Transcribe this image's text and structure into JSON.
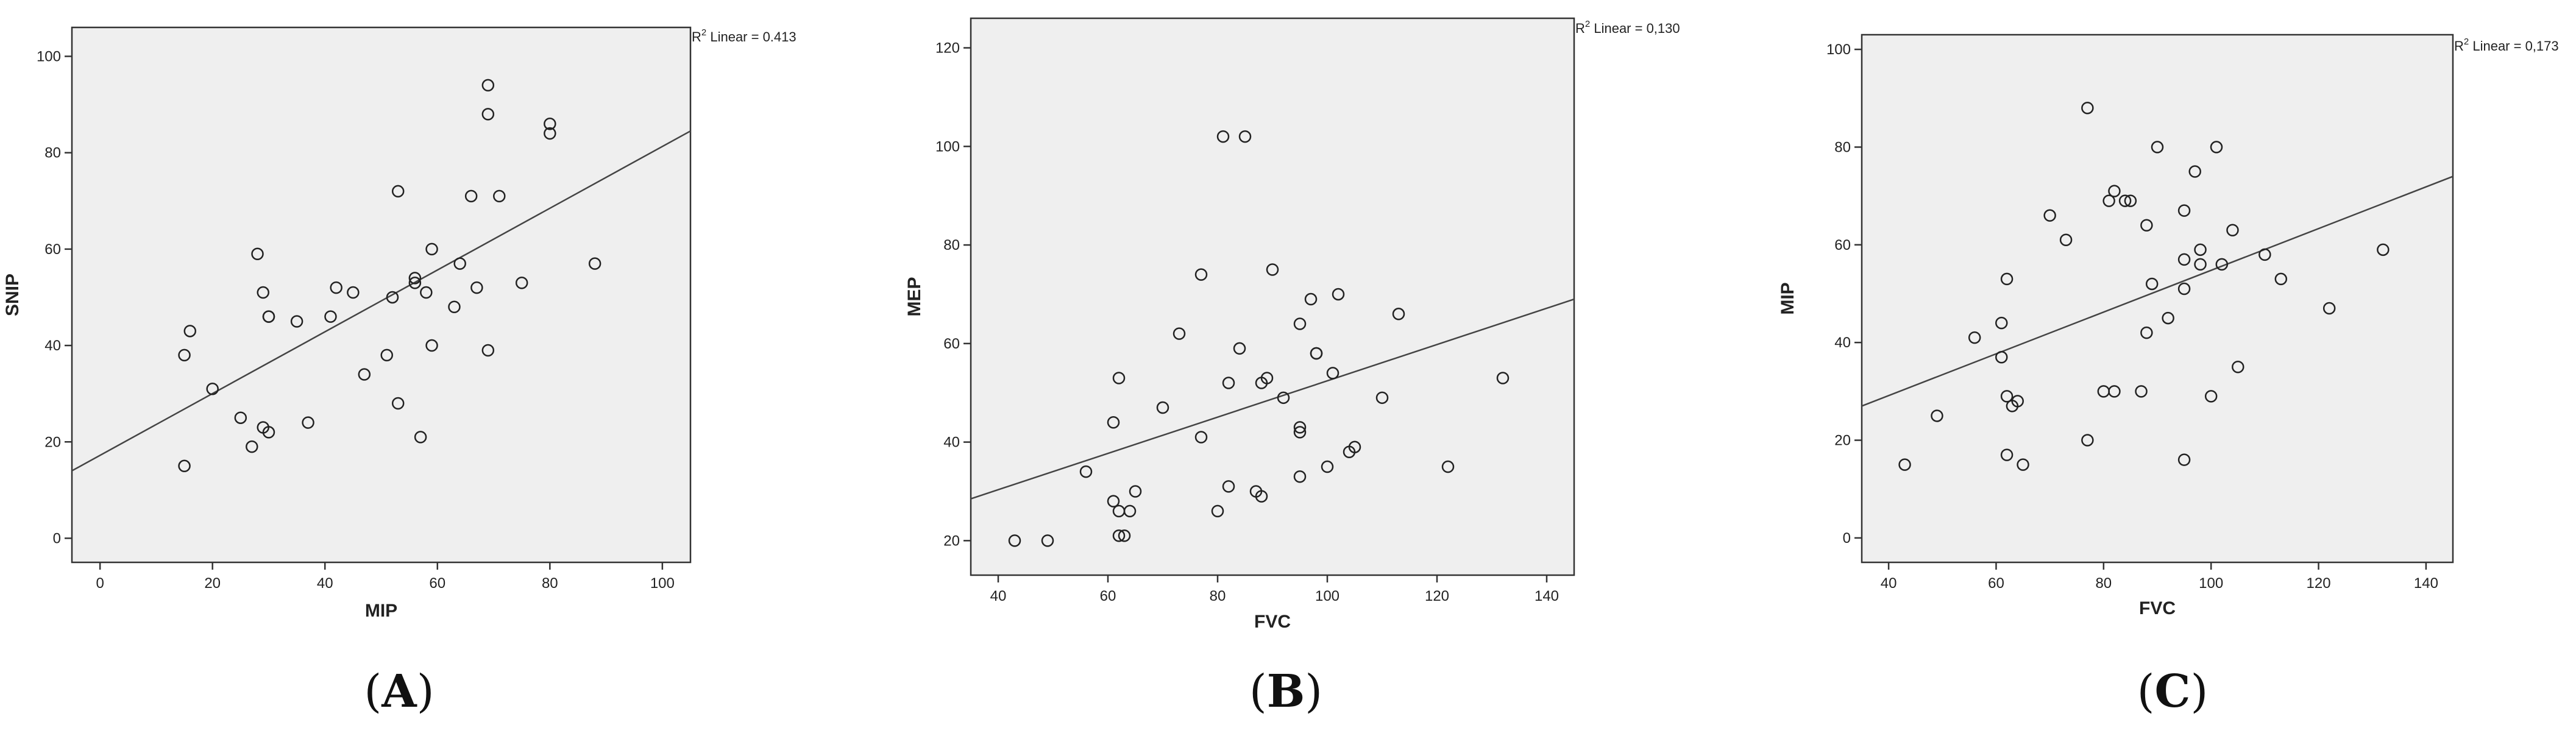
{
  "chart_data": [
    {
      "type": "scatter",
      "panel_label": "A",
      "xlabel": "MIP",
      "ylabel": "SNIP",
      "xlim": [
        -5,
        105
      ],
      "ylim": [
        -5,
        106
      ],
      "xticks": [
        0,
        20,
        40,
        60,
        80,
        100
      ],
      "yticks": [
        0,
        20,
        40,
        60,
        80,
        100
      ],
      "grid": false,
      "r2_text": {
        "sup": "2",
        "prefix": "R",
        "suffix": " Linear = 0.413"
      },
      "fit_line": {
        "x": [
          -5,
          105
        ],
        "y": [
          14,
          84.5
        ]
      },
      "points": [
        {
          "x": 15,
          "y": 38
        },
        {
          "x": 16,
          "y": 43
        },
        {
          "x": 15,
          "y": 15
        },
        {
          "x": 20,
          "y": 31
        },
        {
          "x": 25,
          "y": 25
        },
        {
          "x": 27,
          "y": 19
        },
        {
          "x": 28,
          "y": 59
        },
        {
          "x": 29,
          "y": 51
        },
        {
          "x": 29,
          "y": 23
        },
        {
          "x": 30,
          "y": 22
        },
        {
          "x": 30,
          "y": 46
        },
        {
          "x": 30,
          "y": 46
        },
        {
          "x": 35,
          "y": 45
        },
        {
          "x": 37,
          "y": 24
        },
        {
          "x": 41,
          "y": 46
        },
        {
          "x": 42,
          "y": 52
        },
        {
          "x": 45,
          "y": 51
        },
        {
          "x": 47,
          "y": 34
        },
        {
          "x": 51,
          "y": 38
        },
        {
          "x": 52,
          "y": 50
        },
        {
          "x": 53,
          "y": 72
        },
        {
          "x": 53,
          "y": 28
        },
        {
          "x": 56,
          "y": 54
        },
        {
          "x": 56,
          "y": 53
        },
        {
          "x": 57,
          "y": 21
        },
        {
          "x": 58,
          "y": 51
        },
        {
          "x": 59,
          "y": 60
        },
        {
          "x": 59,
          "y": 40
        },
        {
          "x": 63,
          "y": 48
        },
        {
          "x": 64,
          "y": 57
        },
        {
          "x": 66,
          "y": 71
        },
        {
          "x": 67,
          "y": 52
        },
        {
          "x": 69,
          "y": 94
        },
        {
          "x": 69,
          "y": 88
        },
        {
          "x": 69,
          "y": 39
        },
        {
          "x": 71,
          "y": 71
        },
        {
          "x": 75,
          "y": 53
        },
        {
          "x": 80,
          "y": 86
        },
        {
          "x": 80,
          "y": 84
        },
        {
          "x": 88,
          "y": 57
        }
      ]
    },
    {
      "type": "scatter",
      "panel_label": "B",
      "xlabel": "FVC",
      "ylabel": "MEP",
      "xlim": [
        35,
        145
      ],
      "ylim": [
        13,
        126
      ],
      "xticks": [
        40,
        60,
        80,
        100,
        120,
        140
      ],
      "yticks": [
        20,
        40,
        60,
        80,
        100,
        120
      ],
      "grid": false,
      "r2_text": {
        "sup": "2",
        "prefix": "R",
        "suffix": " Linear = 0,130"
      },
      "fit_line": {
        "x": [
          35,
          145
        ],
        "y": [
          28.5,
          69
        ]
      },
      "points": [
        {
          "x": 43,
          "y": 20
        },
        {
          "x": 49,
          "y": 20
        },
        {
          "x": 56,
          "y": 34
        },
        {
          "x": 61,
          "y": 28
        },
        {
          "x": 61,
          "y": 44
        },
        {
          "x": 62,
          "y": 53
        },
        {
          "x": 62,
          "y": 26
        },
        {
          "x": 62,
          "y": 21
        },
        {
          "x": 63,
          "y": 21
        },
        {
          "x": 64,
          "y": 26
        },
        {
          "x": 65,
          "y": 30
        },
        {
          "x": 70,
          "y": 47
        },
        {
          "x": 73,
          "y": 62
        },
        {
          "x": 77,
          "y": 74
        },
        {
          "x": 77,
          "y": 41
        },
        {
          "x": 80,
          "y": 26
        },
        {
          "x": 81,
          "y": 102
        },
        {
          "x": 82,
          "y": 52
        },
        {
          "x": 82,
          "y": 31
        },
        {
          "x": 84,
          "y": 59
        },
        {
          "x": 85,
          "y": 102
        },
        {
          "x": 87,
          "y": 30
        },
        {
          "x": 88,
          "y": 29
        },
        {
          "x": 88,
          "y": 52
        },
        {
          "x": 89,
          "y": 53
        },
        {
          "x": 90,
          "y": 75
        },
        {
          "x": 92,
          "y": 49
        },
        {
          "x": 95,
          "y": 64
        },
        {
          "x": 95,
          "y": 43
        },
        {
          "x": 95,
          "y": 42
        },
        {
          "x": 95,
          "y": 33
        },
        {
          "x": 97,
          "y": 69
        },
        {
          "x": 98,
          "y": 58
        },
        {
          "x": 98,
          "y": 58
        },
        {
          "x": 100,
          "y": 35
        },
        {
          "x": 101,
          "y": 54
        },
        {
          "x": 102,
          "y": 70
        },
        {
          "x": 104,
          "y": 38
        },
        {
          "x": 105,
          "y": 39
        },
        {
          "x": 110,
          "y": 49
        },
        {
          "x": 113,
          "y": 66
        },
        {
          "x": 122,
          "y": 35
        },
        {
          "x": 132,
          "y": 53
        }
      ]
    },
    {
      "type": "scatter",
      "panel_label": "C",
      "xlabel": "FVC",
      "ylabel": "MIP",
      "xlim": [
        35,
        145
      ],
      "ylim": [
        -5,
        103
      ],
      "xticks": [
        40,
        60,
        80,
        100,
        120,
        140
      ],
      "yticks": [
        0,
        20,
        40,
        60,
        80,
        100
      ],
      "grid": false,
      "r2_text": {
        "sup": "2",
        "prefix": "R",
        "suffix": " Linear = 0,173"
      },
      "fit_line": {
        "x": [
          35,
          145
        ],
        "y": [
          27,
          74
        ]
      },
      "points": [
        {
          "x": 43,
          "y": 15
        },
        {
          "x": 49,
          "y": 25
        },
        {
          "x": 56,
          "y": 41
        },
        {
          "x": 61,
          "y": 44
        },
        {
          "x": 61,
          "y": 37
        },
        {
          "x": 62,
          "y": 53
        },
        {
          "x": 62,
          "y": 29
        },
        {
          "x": 62,
          "y": 17
        },
        {
          "x": 63,
          "y": 27
        },
        {
          "x": 64,
          "y": 28
        },
        {
          "x": 65,
          "y": 15
        },
        {
          "x": 70,
          "y": 66
        },
        {
          "x": 73,
          "y": 61
        },
        {
          "x": 77,
          "y": 88
        },
        {
          "x": 77,
          "y": 20
        },
        {
          "x": 80,
          "y": 30
        },
        {
          "x": 81,
          "y": 69
        },
        {
          "x": 82,
          "y": 71
        },
        {
          "x": 82,
          "y": 30
        },
        {
          "x": 84,
          "y": 69
        },
        {
          "x": 85,
          "y": 69
        },
        {
          "x": 87,
          "y": 30
        },
        {
          "x": 88,
          "y": 64
        },
        {
          "x": 88,
          "y": 42
        },
        {
          "x": 89,
          "y": 52
        },
        {
          "x": 90,
          "y": 80
        },
        {
          "x": 92,
          "y": 45
        },
        {
          "x": 95,
          "y": 67
        },
        {
          "x": 95,
          "y": 57
        },
        {
          "x": 95,
          "y": 51
        },
        {
          "x": 95,
          "y": 16
        },
        {
          "x": 97,
          "y": 75
        },
        {
          "x": 98,
          "y": 59
        },
        {
          "x": 98,
          "y": 56
        },
        {
          "x": 100,
          "y": 29
        },
        {
          "x": 101,
          "y": 80
        },
        {
          "x": 102,
          "y": 56
        },
        {
          "x": 104,
          "y": 63
        },
        {
          "x": 105,
          "y": 35
        },
        {
          "x": 110,
          "y": 58
        },
        {
          "x": 113,
          "y": 53
        },
        {
          "x": 122,
          "y": 47
        },
        {
          "x": 132,
          "y": 59
        }
      ]
    }
  ]
}
